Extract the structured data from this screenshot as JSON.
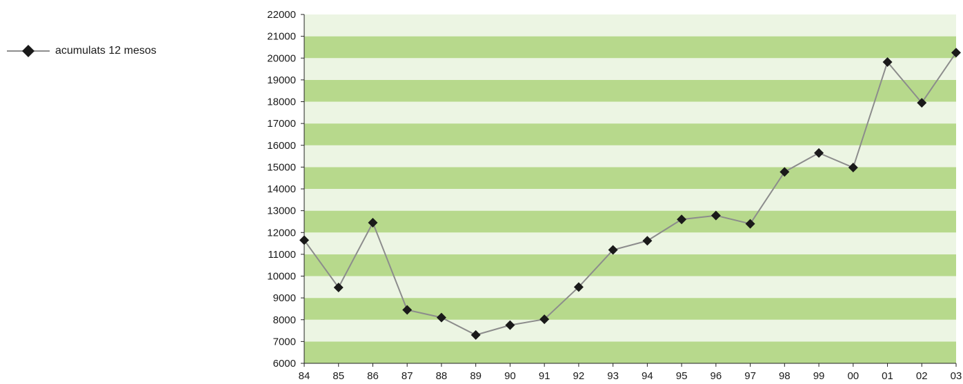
{
  "chart_data": {
    "type": "line",
    "title": "",
    "xlabel": "",
    "ylabel": "",
    "ylim": [
      6000,
      22000
    ],
    "yticks": [
      6000,
      7000,
      8000,
      9000,
      10000,
      11000,
      12000,
      13000,
      14000,
      15000,
      16000,
      17000,
      18000,
      19000,
      20000,
      21000,
      22000
    ],
    "categories": [
      "84",
      "85",
      "86",
      "87",
      "88",
      "89",
      "90",
      "91",
      "92",
      "93",
      "94",
      "95",
      "96",
      "97",
      "98",
      "99",
      "00",
      "01",
      "02",
      "03"
    ],
    "series": [
      {
        "name": "acumulats 12 mesos",
        "color": "#8c8c8c",
        "marker_color": "#1a1a1a",
        "marker": "diamond",
        "values": [
          11650,
          9480,
          12450,
          8450,
          8100,
          7300,
          7750,
          8020,
          9500,
          11200,
          11620,
          12600,
          12780,
          12400,
          14780,
          15650,
          14980,
          19820,
          17950,
          20250
        ]
      }
    ],
    "band_colors": [
      "#b7d98c",
      "#ecf5e3"
    ],
    "legend": "top-left",
    "grid": false
  }
}
